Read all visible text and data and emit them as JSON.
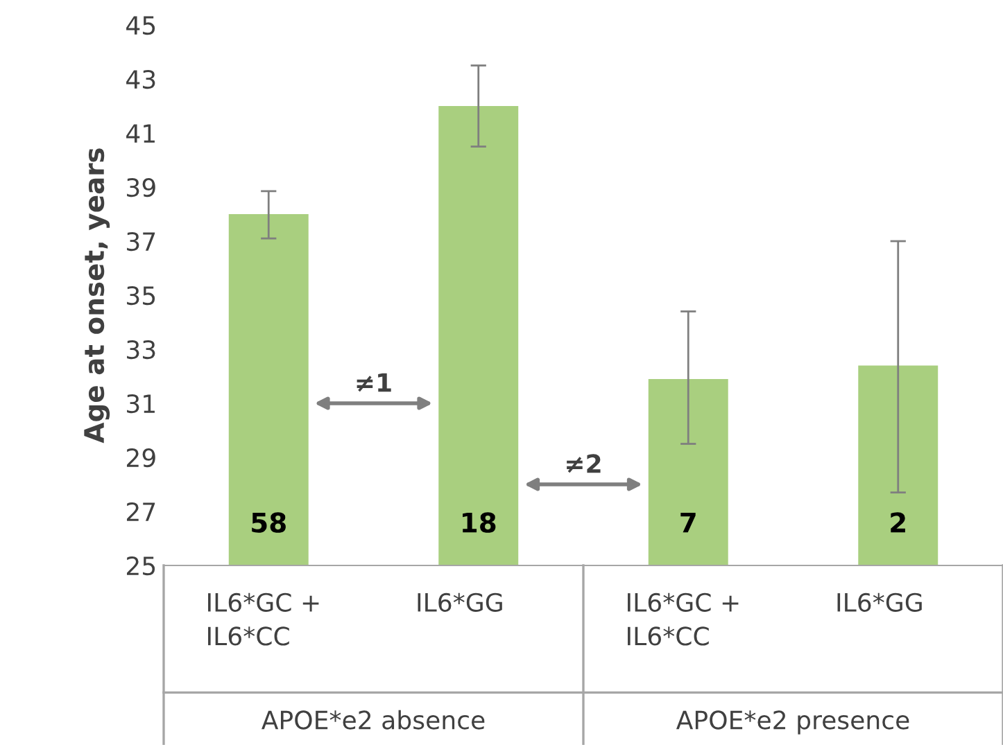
{
  "chart_data": {
    "type": "bar",
    "ylabel": "Age at onset, years",
    "categories": [
      "IL6*GC +\nIL6*CC",
      "IL6*GG",
      "IL6*GC +\nIL6*CC",
      "IL6*GG"
    ],
    "values": [
      38.0,
      42.0,
      31.9,
      32.4
    ],
    "errors": [
      [
        37.1,
        38.85
      ],
      [
        40.5,
        43.5
      ],
      [
        29.5,
        34.4
      ],
      [
        27.7,
        37.0
      ]
    ],
    "color": "#a9cf7f",
    "ylim": [
      25,
      45
    ],
    "yticks": [
      25,
      27,
      29,
      31,
      33,
      35,
      37,
      39,
      41,
      43,
      45
    ],
    "annotations": [
      "58",
      "18",
      "7",
      "2",
      "≠1",
      "≠2",
      "APOE*e2 absence",
      "APOE*e2 presence"
    ]
  }
}
